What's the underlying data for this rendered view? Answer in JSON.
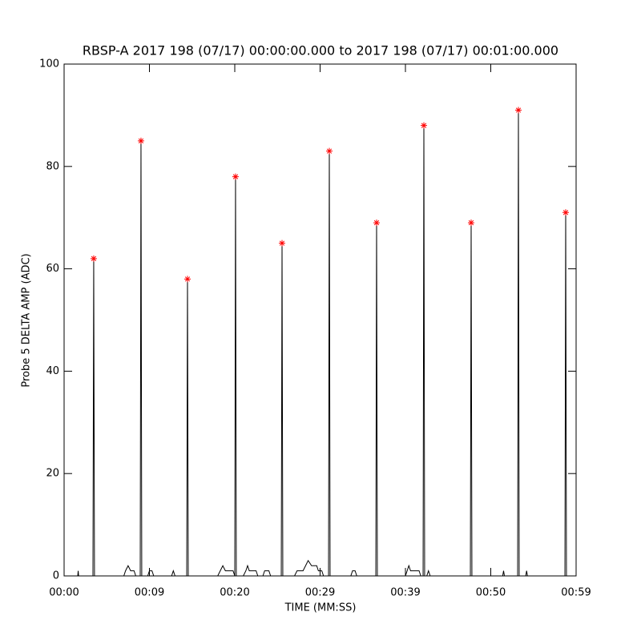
{
  "chart_data": {
    "type": "line",
    "title": "RBSP-A 2017 198 (07/17) 00:00:00.000 to 2017 198 (07/17) 00:01:00.000",
    "x_label": "TIME (MM:SS)",
    "y_label": "Probe 5 DELTA AMP (ADC)",
    "xlim": [
      0,
      60
    ],
    "xticks": [
      {
        "value": 0,
        "label": "00:00"
      },
      {
        "value": 10,
        "label": "00:09"
      },
      {
        "value": 20,
        "label": "00:20"
      },
      {
        "value": 30,
        "label": "00:29"
      },
      {
        "value": 40,
        "label": "00:39"
      },
      {
        "value": 50,
        "label": "00:50"
      },
      {
        "value": 60,
        "label": "00:59"
      }
    ],
    "ylim": [
      0,
      100
    ],
    "yticks": [
      0,
      20,
      40,
      60,
      80,
      100
    ],
    "series": [
      {
        "color": "#000000",
        "marker": "none",
        "x": [
          0,
          1.6,
          1.65,
          1.7,
          3.38,
          3.47,
          3.56,
          7.0,
          7.2,
          7.5,
          7.8,
          8.2,
          8.4,
          8.92,
          9.01,
          9.1,
          9.8,
          10,
          10.3,
          10.5,
          12.6,
          12.8,
          13.0,
          14.37,
          14.46,
          14.55,
          18.0,
          18.3,
          18.6,
          18.9,
          19.8,
          20.0,
          20.09,
          20.18,
          21,
          21.3,
          21.5,
          21.7,
          22.5,
          22.7,
          23.3,
          23.5,
          24.0,
          24.2,
          25.45,
          25.54,
          25.63,
          27,
          27.3,
          28,
          28.3,
          28.6,
          29.0,
          29.6,
          29.8,
          30.2,
          30.4,
          30.99,
          31.08,
          31.17,
          33.6,
          33.8,
          34.1,
          34.3,
          36.53,
          36.62,
          36.71,
          40,
          40.2,
          40.4,
          40.6,
          41.6,
          41.8,
          42.07,
          42.16,
          42.25,
          42.5,
          42.7,
          42.9,
          47.61,
          47.7,
          47.79,
          51.4,
          51.5,
          51.6,
          53.15,
          53.24,
          53.33,
          54.1,
          54.2,
          54.3,
          58.69,
          58.78,
          58.87,
          60
        ],
        "values": [
          0,
          0,
          1,
          0,
          0,
          62,
          0,
          0,
          1,
          2,
          1,
          1,
          0,
          0,
          85,
          0,
          0,
          1,
          1,
          0,
          0,
          1,
          0,
          0,
          58,
          0,
          0,
          1,
          2,
          1,
          1,
          0,
          78,
          0,
          0,
          1,
          2,
          1,
          1,
          0,
          0,
          1,
          1,
          0,
          0,
          65,
          0,
          0,
          1,
          1,
          2,
          3,
          2,
          2,
          1,
          1,
          0,
          0,
          83,
          0,
          0,
          1,
          1,
          0,
          0,
          69,
          0,
          0,
          1,
          2,
          1,
          1,
          0,
          0,
          88,
          0,
          0,
          1,
          0,
          0,
          69,
          0,
          0,
          1,
          0,
          0,
          91,
          0,
          0,
          1,
          0,
          0,
          71,
          0,
          0
        ]
      },
      {
        "color": "#ff0000",
        "marker": "asterisk",
        "x": [
          3.47,
          9.01,
          14.46,
          20.09,
          25.54,
          31.08,
          36.62,
          42.16,
          47.7,
          53.24,
          58.78
        ],
        "values": [
          62,
          85,
          58,
          78,
          65,
          83,
          69,
          88,
          69,
          91,
          71
        ]
      }
    ]
  }
}
